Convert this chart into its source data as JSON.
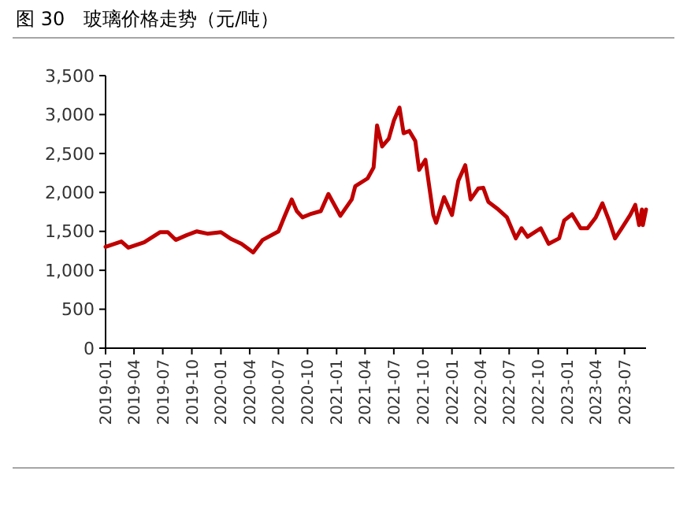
{
  "chart_data": {
    "type": "line",
    "title": "图 30　玻璃价格走势（元/吨）",
    "x": [
      "2019-01-01",
      "2019-02-20",
      "2019-03-14",
      "2019-05-03",
      "2019-06-23",
      "2019-07-17",
      "2019-08-11",
      "2019-09-14",
      "2019-10-17",
      "2019-11-19",
      "2020-01-01",
      "2020-02-03",
      "2020-03-06",
      "2020-04-12",
      "2020-05-12",
      "2020-07-01",
      "2020-07-22",
      "2020-08-12",
      "2020-08-28",
      "2020-09-15",
      "2020-10-09",
      "2020-11-12",
      "2020-12-06",
      "2021-01-13",
      "2021-02-18",
      "2021-03-01",
      "2021-04-09",
      "2021-04-28",
      "2021-05-09",
      "2021-05-25",
      "2021-06-15",
      "2021-07-01",
      "2021-07-19",
      "2021-08-01",
      "2021-08-19",
      "2021-09-07",
      "2021-09-19",
      "2021-10-09",
      "2021-11-03",
      "2021-11-12",
      "2021-12-07",
      "2022-01-01",
      "2022-01-21",
      "2022-02-12",
      "2022-03-01",
      "2022-03-25",
      "2022-04-10",
      "2022-04-26",
      "2022-05-28",
      "2022-06-24",
      "2022-07-22",
      "2022-08-09",
      "2022-08-28",
      "2022-10-09",
      "2022-11-03",
      "2022-12-06",
      "2022-12-22",
      "2023-01-16",
      "2023-02-12",
      "2023-03-06",
      "2023-04-01",
      "2023-04-22",
      "2023-05-13",
      "2023-06-01",
      "2023-06-22",
      "2023-07-19",
      "2023-08-04",
      "2023-08-16",
      "2023-08-25",
      "2023-08-28",
      "2023-09-07"
    ],
    "series": [
      {
        "color": "#c00000",
        "values": [
          1300,
          1370,
          1290,
          1360,
          1490,
          1490,
          1390,
          1450,
          1500,
          1470,
          1490,
          1400,
          1340,
          1230,
          1390,
          1500,
          1710,
          1910,
          1760,
          1680,
          1720,
          1760,
          1980,
          1700,
          1910,
          2080,
          2180,
          2320,
          2860,
          2590,
          2690,
          2920,
          3090,
          2760,
          2790,
          2660,
          2290,
          2420,
          1710,
          1610,
          1940,
          1710,
          2150,
          2350,
          1910,
          2050,
          2060,
          1880,
          1780,
          1680,
          1410,
          1540,
          1430,
          1540,
          1340,
          1410,
          1640,
          1720,
          1540,
          1540,
          1680,
          1860,
          1640,
          1410,
          1540,
          1710,
          1840,
          1580,
          1780,
          1580,
          1780
        ]
      }
    ],
    "xlim": [
      "2019-01-01",
      "2023-09-07"
    ],
    "xticks": [
      "2019-01",
      "2019-04",
      "2019-07",
      "2019-10",
      "2020-01",
      "2020-04",
      "2020-07",
      "2020-10",
      "2021-01",
      "2021-04",
      "2021-07",
      "2021-10",
      "2022-01",
      "2022-04",
      "2022-07",
      "2022-10",
      "2023-01",
      "2023-04",
      "2023-07"
    ],
    "ylim": [
      0,
      3500
    ],
    "yticks": [
      {
        "value": 0,
        "label": "0"
      },
      {
        "value": 500,
        "label": "500"
      },
      {
        "value": 1000,
        "label": "1,000"
      },
      {
        "value": 1500,
        "label": "1,500"
      },
      {
        "value": 2000,
        "label": "2,000"
      },
      {
        "value": 2500,
        "label": "2,500"
      },
      {
        "value": 3000,
        "label": "3,000"
      },
      {
        "value": 3500,
        "label": "3,500"
      }
    ],
    "grid": false,
    "marker": "none",
    "line_style": "solid"
  }
}
